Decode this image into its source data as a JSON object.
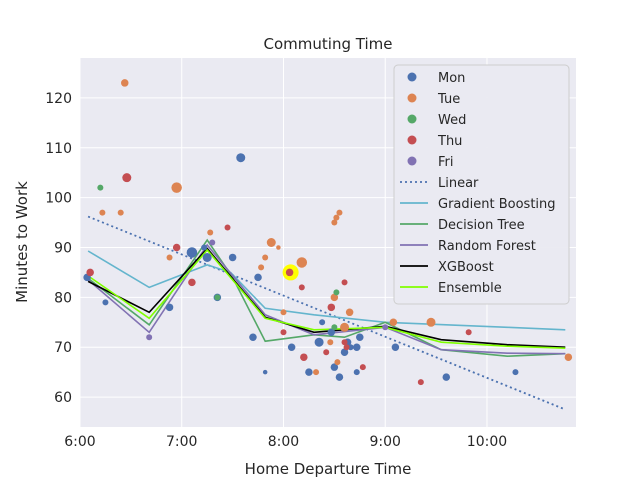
{
  "chart_data": {
    "type": "scatter",
    "title": "Commuting Time",
    "xlabel": "Home Departure Time",
    "ylabel": "Minutes to Work",
    "xlim": [
      6.0,
      10.875
    ],
    "ylim": [
      54,
      128
    ],
    "x_ticks": [
      {
        "value": 6.0,
        "label": "6:00"
      },
      {
        "value": 7.0,
        "label": "7:00"
      },
      {
        "value": 8.0,
        "label": "8:00"
      },
      {
        "value": 9.0,
        "label": "9:00"
      },
      {
        "value": 10.0,
        "label": "10:00"
      }
    ],
    "y_ticks": [
      60,
      70,
      80,
      90,
      100,
      110,
      120
    ],
    "grid": true,
    "legend_position": "top-right",
    "scatter_series": [
      {
        "name": "Mon",
        "color": "#4c72b0",
        "points": [
          [
            6.25,
            79,
            4
          ],
          [
            6.07,
            84,
            5
          ],
          [
            7.1,
            89,
            7
          ],
          [
            7.25,
            88,
            6
          ],
          [
            7.35,
            80,
            5
          ],
          [
            7.5,
            88,
            5
          ],
          [
            7.58,
            108,
            6
          ],
          [
            7.7,
            72,
            5
          ],
          [
            7.75,
            84,
            5
          ],
          [
            7.82,
            65,
            3
          ],
          [
            8.08,
            70,
            5
          ],
          [
            8.25,
            65,
            5
          ],
          [
            8.35,
            71,
            6
          ],
          [
            8.38,
            75,
            4
          ],
          [
            8.47,
            73,
            5
          ],
          [
            8.5,
            66,
            5
          ],
          [
            8.55,
            64,
            5
          ],
          [
            8.6,
            69,
            5
          ],
          [
            8.63,
            71,
            5
          ],
          [
            8.66,
            70,
            4
          ],
          [
            8.72,
            65,
            4
          ],
          [
            8.72,
            70,
            5
          ],
          [
            8.75,
            72,
            5
          ],
          [
            9.1,
            70,
            5
          ],
          [
            9.6,
            64,
            5
          ],
          [
            10.28,
            65,
            4
          ],
          [
            6.88,
            78,
            5
          ],
          [
            7.22,
            90,
            4
          ]
        ]
      },
      {
        "name": "Tue",
        "color": "#dd8452",
        "points": [
          [
            6.22,
            97,
            4
          ],
          [
            6.4,
            97,
            4
          ],
          [
            6.44,
            123,
            5
          ],
          [
            6.88,
            88,
            4
          ],
          [
            6.95,
            102,
            7
          ],
          [
            7.28,
            93,
            4
          ],
          [
            7.78,
            86,
            4
          ],
          [
            7.82,
            88,
            4
          ],
          [
            7.88,
            91,
            6
          ],
          [
            7.95,
            90,
            3
          ],
          [
            8.0,
            77,
            4
          ],
          [
            8.18,
            87,
            7
          ],
          [
            8.32,
            65,
            4
          ],
          [
            8.46,
            71,
            4
          ],
          [
            8.5,
            95,
            4
          ],
          [
            8.52,
            96,
            4
          ],
          [
            8.55,
            97,
            4
          ],
          [
            8.5,
            80,
            5
          ],
          [
            8.6,
            74,
            6
          ],
          [
            8.65,
            77,
            5
          ],
          [
            9.08,
            75,
            5
          ],
          [
            9.45,
            75,
            6
          ],
          [
            10.8,
            68,
            5
          ],
          [
            8.53,
            67,
            4
          ]
        ]
      },
      {
        "name": "Wed",
        "color": "#55a868",
        "points": [
          [
            6.2,
            102,
            4
          ],
          [
            7.35,
            80,
            4
          ],
          [
            8.52,
            81,
            4
          ],
          [
            8.5,
            74,
            4
          ]
        ]
      },
      {
        "name": "Thu",
        "color": "#c44e52",
        "points": [
          [
            6.1,
            85,
            5
          ],
          [
            6.46,
            104,
            6
          ],
          [
            6.95,
            90,
            5
          ],
          [
            7.1,
            83,
            5
          ],
          [
            7.45,
            94,
            4
          ],
          [
            8.0,
            73,
            4
          ],
          [
            8.06,
            85,
            5
          ],
          [
            8.18,
            82,
            4
          ],
          [
            8.2,
            68,
            5
          ],
          [
            8.42,
            69,
            4
          ],
          [
            8.47,
            78,
            5
          ],
          [
            8.6,
            71,
            4
          ],
          [
            8.62,
            70,
            4
          ],
          [
            8.6,
            83,
            4
          ],
          [
            8.78,
            66,
            4
          ],
          [
            9.35,
            63,
            4
          ],
          [
            9.82,
            73,
            4
          ]
        ]
      },
      {
        "name": "Fri",
        "color": "#8172b3",
        "points": [
          [
            6.68,
            72,
            4
          ],
          [
            7.3,
            91,
            4
          ],
          [
            9.0,
            74,
            4
          ]
        ]
      }
    ],
    "highlight_point": {
      "x": 8.07,
      "y": 85,
      "color": "#ffff00"
    },
    "line_series": [
      {
        "name": "Linear",
        "color": "#4c72b0",
        "style": "dotted",
        "points": [
          [
            6.08,
            96.2
          ],
          [
            10.77,
            57.5
          ]
        ]
      },
      {
        "name": "Gradient Boosting",
        "color": "#64b5cd",
        "style": "solid",
        "points": [
          [
            6.08,
            89.3
          ],
          [
            6.68,
            82
          ],
          [
            7.25,
            86.5
          ],
          [
            7.48,
            85
          ],
          [
            7.82,
            77.8
          ],
          [
            8.3,
            76.5
          ],
          [
            9.0,
            75
          ],
          [
            9.6,
            74.5
          ],
          [
            10.2,
            74
          ],
          [
            10.77,
            73.5
          ]
        ]
      },
      {
        "name": "Decision Tree",
        "color": "#55a868",
        "style": "solid",
        "points": [
          [
            6.08,
            83.8
          ],
          [
            6.68,
            74.5
          ],
          [
            7.25,
            91.5
          ],
          [
            7.5,
            84
          ],
          [
            7.82,
            71.2
          ],
          [
            8.3,
            72.5
          ],
          [
            8.6,
            72
          ],
          [
            9.0,
            75
          ],
          [
            9.55,
            69.5
          ],
          [
            10.2,
            68.2
          ],
          [
            10.77,
            68.7
          ]
        ]
      },
      {
        "name": "Random Forest",
        "color": "#8172b3",
        "style": "solid",
        "points": [
          [
            6.08,
            83.5
          ],
          [
            6.68,
            73
          ],
          [
            7.25,
            90.5
          ],
          [
            7.82,
            76.5
          ],
          [
            8.3,
            72.5
          ],
          [
            9.0,
            74
          ],
          [
            9.55,
            69.5
          ],
          [
            10.2,
            68.8
          ],
          [
            10.77,
            68.7
          ]
        ]
      },
      {
        "name": "XGBoost",
        "color": "#000000",
        "style": "solid",
        "points": [
          [
            6.08,
            83.2
          ],
          [
            6.68,
            77
          ],
          [
            7.25,
            89.8
          ],
          [
            7.82,
            76
          ],
          [
            8.3,
            73
          ],
          [
            9.0,
            74.2
          ],
          [
            9.55,
            71.5
          ],
          [
            10.2,
            70.5
          ],
          [
            10.77,
            70
          ]
        ]
      },
      {
        "name": "Ensemble",
        "color": "#80ff00",
        "style": "solid",
        "points": [
          [
            6.08,
            84.3
          ],
          [
            6.68,
            75.8
          ],
          [
            7.25,
            89.5
          ],
          [
            7.82,
            75.8
          ],
          [
            8.3,
            73.5
          ],
          [
            9.0,
            74
          ],
          [
            9.55,
            71
          ],
          [
            10.2,
            70.2
          ],
          [
            10.77,
            69.8
          ]
        ]
      }
    ]
  }
}
